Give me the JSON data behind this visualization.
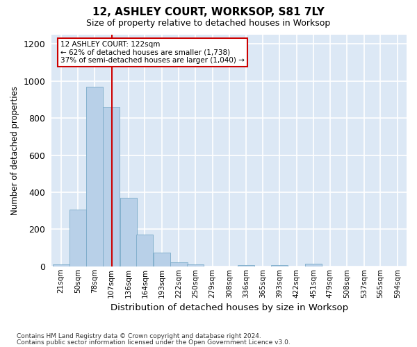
{
  "title1": "12, ASHLEY COURT, WORKSOP, S81 7LY",
  "title2": "Size of property relative to detached houses in Worksop",
  "xlabel": "Distribution of detached houses by size in Worksop",
  "ylabel": "Number of detached properties",
  "footnote1": "Contains HM Land Registry data © Crown copyright and database right 2024.",
  "footnote2": "Contains public sector information licensed under the Open Government Licence v3.0.",
  "annotation_line1": "12 ASHLEY COURT: 122sqm",
  "annotation_line2": "← 62% of detached houses are smaller (1,738)",
  "annotation_line3": "37% of semi-detached houses are larger (1,040) →",
  "bar_color": "#b8d0e8",
  "bar_edge_color": "#7aaac8",
  "red_line_x": 122,
  "categories": [
    "21sqm",
    "50sqm",
    "78sqm",
    "107sqm",
    "136sqm",
    "164sqm",
    "193sqm",
    "222sqm",
    "250sqm",
    "279sqm",
    "308sqm",
    "336sqm",
    "365sqm",
    "393sqm",
    "422sqm",
    "451sqm",
    "479sqm",
    "508sqm",
    "537sqm",
    "565sqm",
    "594sqm"
  ],
  "bin_starts": [
    21,
    50,
    78,
    107,
    136,
    164,
    193,
    222,
    250,
    279,
    308,
    336,
    365,
    393,
    422,
    451,
    479,
    508,
    537,
    565,
    594
  ],
  "bin_width": 29,
  "values": [
    10,
    305,
    970,
    860,
    370,
    170,
    75,
    20,
    10,
    0,
    0,
    5,
    0,
    5,
    0,
    15,
    0,
    0,
    0,
    0,
    0
  ],
  "ylim": [
    0,
    1250
  ],
  "yticks": [
    0,
    200,
    400,
    600,
    800,
    1000,
    1200
  ],
  "plot_bg_color": "#dce8f5",
  "fig_bg_color": "#ffffff",
  "grid_color": "#ffffff",
  "annotation_box_color": "#ffffff",
  "annotation_box_edge": "#cc0000",
  "red_line_color": "#cc0000"
}
